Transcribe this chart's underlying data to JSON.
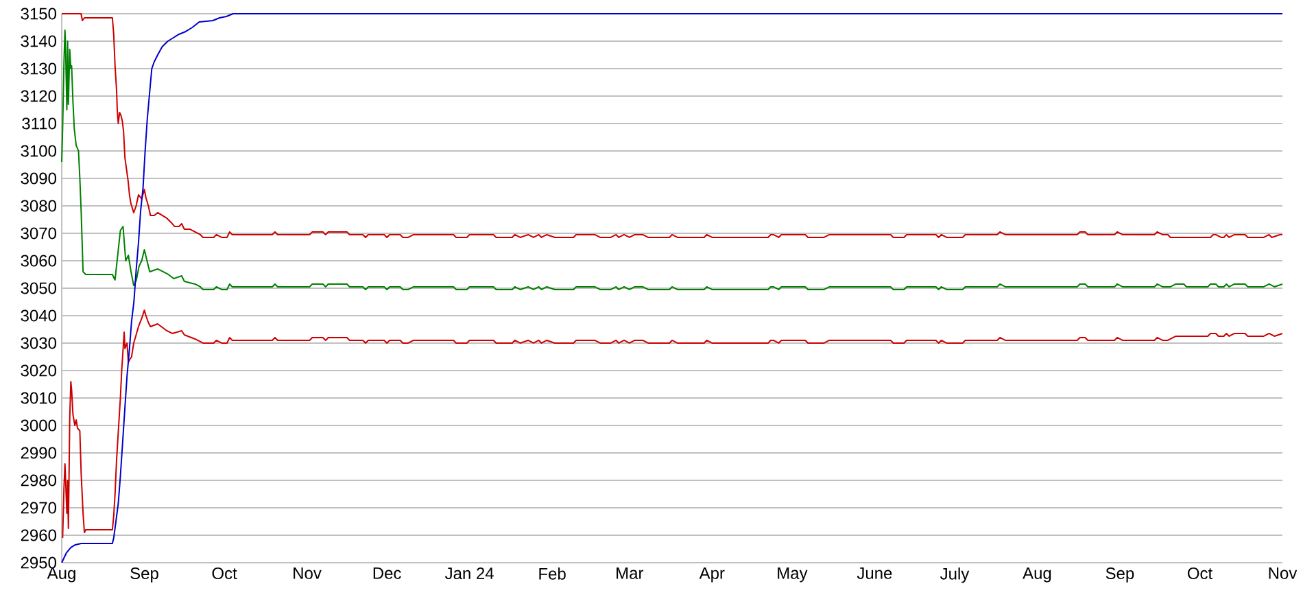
{
  "chart_data": {
    "type": "line",
    "xlim": [
      "2023-08-01",
      "2024-11-01"
    ],
    "ylim": [
      2950,
      3150
    ],
    "xticks": [
      {
        "value": "2023-08-01",
        "label": "Aug"
      },
      {
        "value": "2023-09-01",
        "label": "Sep"
      },
      {
        "value": "2023-10-01",
        "label": "Oct"
      },
      {
        "value": "2023-11-01",
        "label": "Nov"
      },
      {
        "value": "2023-12-01",
        "label": "Dec"
      },
      {
        "value": "2024-01-01",
        "label": "Jan 24"
      },
      {
        "value": "2024-02-01",
        "label": "Feb"
      },
      {
        "value": "2024-03-01",
        "label": "Mar"
      },
      {
        "value": "2024-04-01",
        "label": "Apr"
      },
      {
        "value": "2024-05-01",
        "label": "May"
      },
      {
        "value": "2024-06-01",
        "label": "June"
      },
      {
        "value": "2024-07-01",
        "label": "July"
      },
      {
        "value": "2024-08-01",
        "label": "Aug"
      },
      {
        "value": "2024-09-01",
        "label": "Sep"
      },
      {
        "value": "2024-10-01",
        "label": "Oct"
      },
      {
        "value": "2024-11-01",
        "label": "Nov"
      }
    ],
    "yticks": [
      2950,
      2960,
      2970,
      2980,
      2990,
      3000,
      3010,
      3020,
      3030,
      3040,
      3050,
      3060,
      3070,
      3080,
      3090,
      3100,
      3110,
      3120,
      3130,
      3140,
      3150
    ],
    "grid": "y",
    "series": [
      {
        "color": "#cc0000",
        "x": [
          "2023-08-01",
          "2023-08-08T06:00",
          "2023-08-08T18:00",
          "2023-08-09T12:00",
          "2023-08-20",
          "2023-08-20T12:00",
          "2023-08-21",
          "2023-08-21T14:00",
          "2023-08-21T20:00",
          "2023-08-22T05:00",
          "2023-08-22T17:00",
          "2023-08-23T05:00",
          "2023-08-23T17:00",
          "2023-08-24T05:00",
          "2023-08-24T17:00",
          "2023-08-25T05:00",
          "2023-08-25T22:00",
          "2023-08-26T10:00",
          "2023-08-26T22:00",
          "2023-08-28",
          "2023-08-28T22:00",
          "2023-08-29T19:00",
          "2023-08-31",
          "2023-09-01",
          "2023-09-01T14:00",
          "2023-09-02T12:00",
          "2023-09-03T07:00",
          "2023-09-04T17:00",
          "2023-09-06",
          "2023-09-07T17:00",
          "2023-09-09T10:00",
          "2023-09-11",
          "2023-09-12T07:00",
          "2023-09-14",
          "2023-09-15",
          "2023-09-16",
          "2023-09-18",
          "2023-09-20",
          "2023-09-22",
          "2023-09-23",
          "2023-09-27",
          "2023-09-28",
          "2023-09-30",
          "2023-10-02",
          "2023-10-03",
          "2023-10-04",
          "2023-10-19",
          "2023-10-20",
          "2023-10-21",
          "2023-11-02",
          "2023-11-03",
          "2023-11-07",
          "2023-11-08",
          "2023-11-09",
          "2023-11-16",
          "2023-11-17",
          "2023-11-22",
          "2023-11-23",
          "2023-11-24",
          "2023-11-30",
          "2023-12-01",
          "2023-12-02",
          "2023-12-06",
          "2023-12-07",
          "2023-12-09",
          "2023-12-11",
          "2023-12-26",
          "2023-12-27",
          "2023-12-31",
          "2024-01-01",
          "2024-01-10",
          "2024-01-11",
          "2024-01-17",
          "2024-01-18",
          "2024-01-20",
          "2024-01-23",
          "2024-01-25",
          "2024-01-27",
          "2024-01-28",
          "2024-01-30",
          "2024-02-02",
          "2024-02-09",
          "2024-02-10",
          "2024-02-17",
          "2024-02-19",
          "2024-02-23",
          "2024-02-25",
          "2024-02-26",
          "2024-02-28",
          "2024-03-01",
          "2024-03-03",
          "2024-03-06",
          "2024-03-08",
          "2024-03-16",
          "2024-03-17",
          "2024-03-19",
          "2024-03-29",
          "2024-03-30",
          "2024-04-01",
          "2024-04-22",
          "2024-04-23",
          "2024-04-24",
          "2024-04-26",
          "2024-04-27",
          "2024-05-06",
          "2024-05-07",
          "2024-05-13",
          "2024-05-15",
          "2024-06-07",
          "2024-06-08",
          "2024-06-12",
          "2024-06-13",
          "2024-06-24",
          "2024-06-25",
          "2024-06-26",
          "2024-06-28",
          "2024-07-04",
          "2024-07-05",
          "2024-07-17",
          "2024-07-18",
          "2024-07-20",
          "2024-08-16",
          "2024-08-17",
          "2024-08-19",
          "2024-08-20",
          "2024-08-30",
          "2024-08-31",
          "2024-09-02",
          "2024-09-14",
          "2024-09-15",
          "2024-09-17",
          "2024-09-19",
          "2024-09-20",
          "2024-10-05",
          "2024-10-06",
          "2024-10-07",
          "2024-10-09",
          "2024-10-10",
          "2024-10-11",
          "2024-10-12",
          "2024-10-14",
          "2024-10-18",
          "2024-10-19",
          "2024-10-25",
          "2024-10-27",
          "2024-10-28",
          "2024-10-31",
          "2024-11-01"
        ],
        "values": [
          3150,
          3150,
          3147.5,
          3148.5,
          3148.5,
          3142.5,
          3131,
          3122,
          3115,
          3110,
          3114,
          3113,
          3111,
          3107,
          3097.5,
          3094,
          3089,
          3084,
          3081,
          3077.5,
          3080,
          3084,
          3082.5,
          3086,
          3083,
          3080,
          3076.5,
          3076.5,
          3077.5,
          3076.5,
          3075.5,
          3074,
          3072.5,
          3072.5,
          3073.5,
          3071.5,
          3071.5,
          3070.5,
          3069.5,
          3068.5,
          3068.5,
          3069.5,
          3068.5,
          3068.5,
          3070.5,
          3069.5,
          3069.5,
          3070.5,
          3069.5,
          3069.5,
          3070.5,
          3070.5,
          3069.5,
          3070.5,
          3070.5,
          3069.5,
          3069.5,
          3068.5,
          3069.5,
          3069.5,
          3068.5,
          3069.5,
          3069.5,
          3068.5,
          3068.5,
          3069.5,
          3069.5,
          3068.5,
          3068.5,
          3069.5,
          3069.5,
          3068.5,
          3068.5,
          3069.5,
          3068.5,
          3069.5,
          3068.5,
          3069.5,
          3068.5,
          3069.5,
          3068.5,
          3068.5,
          3069.5,
          3069.5,
          3068.5,
          3068.5,
          3069.5,
          3068.5,
          3069.5,
          3068.5,
          3069.5,
          3069.5,
          3068.5,
          3068.5,
          3069.5,
          3068.5,
          3068.5,
          3069.5,
          3068.5,
          3068.5,
          3069.5,
          3069.5,
          3068.5,
          3069.5,
          3069.5,
          3068.5,
          3068.5,
          3069.5,
          3069.5,
          3068.5,
          3068.5,
          3069.5,
          3069.5,
          3068.5,
          3069.5,
          3068.5,
          3068.5,
          3069.5,
          3069.5,
          3070.5,
          3069.5,
          3069.5,
          3070.5,
          3070.5,
          3069.5,
          3069.5,
          3070.5,
          3069.5,
          3069.5,
          3070.5,
          3069.5,
          3069.5,
          3068.5,
          3068.5,
          3069.5,
          3069.5,
          3068.5,
          3068.5,
          3069.5,
          3068.5,
          3069.5,
          3069.5,
          3068.5,
          3068.5,
          3069.5,
          3068.5,
          3069.5,
          3069.5
        ]
      },
      {
        "color": "#008000",
        "x": [
          "2023-08-01",
          "2023-08-01T08:00",
          "2023-08-01T20:00",
          "2023-08-02T05:00",
          "2023-08-02T12:00",
          "2023-08-02T22:00",
          "2023-08-03T05:00",
          "2023-08-03T12:00",
          "2023-08-04T00:00",
          "2023-08-04T10:00",
          "2023-08-04T17:00",
          "2023-08-05T05:00",
          "2023-08-05T17:00",
          "2023-08-06T10:00",
          "2023-08-07T07:00",
          "2023-08-07T19:00",
          "2023-08-08T07:00",
          "2023-08-09",
          "2023-08-10",
          "2023-08-20",
          "2023-08-21",
          "2023-08-22",
          "2023-08-23",
          "2023-08-24",
          "2023-08-25",
          "2023-08-26",
          "2023-08-27",
          "2023-08-28",
          "2023-08-29",
          "2023-08-30",
          "2023-08-31",
          "2023-09-01",
          "2023-09-02",
          "2023-09-03",
          "2023-09-06",
          "2023-09-10",
          "2023-09-12",
          "2023-09-15",
          "2023-09-16",
          "2023-09-20",
          "2023-09-22",
          "2023-09-23",
          "2023-09-27",
          "2023-09-28",
          "2023-09-30",
          "2023-10-02",
          "2023-10-03",
          "2023-10-04",
          "2023-10-19",
          "2023-10-20",
          "2023-10-21",
          "2023-11-02",
          "2023-11-03",
          "2023-11-07",
          "2023-11-08",
          "2023-11-09",
          "2023-11-16",
          "2023-11-17",
          "2023-11-22",
          "2023-11-23",
          "2023-11-24",
          "2023-11-30",
          "2023-12-01",
          "2023-12-02",
          "2023-12-06",
          "2023-12-07",
          "2023-12-09",
          "2023-12-11",
          "2023-12-26",
          "2023-12-27",
          "2023-12-31",
          "2024-01-01",
          "2024-01-10",
          "2024-01-11",
          "2024-01-17",
          "2024-01-18",
          "2024-01-20",
          "2024-01-23",
          "2024-01-25",
          "2024-01-27",
          "2024-01-28",
          "2024-01-30",
          "2024-02-02",
          "2024-02-09",
          "2024-02-10",
          "2024-02-17",
          "2024-02-19",
          "2024-02-23",
          "2024-02-25",
          "2024-02-26",
          "2024-02-28",
          "2024-03-01",
          "2024-03-03",
          "2024-03-06",
          "2024-03-08",
          "2024-03-16",
          "2024-03-17",
          "2024-03-19",
          "2024-03-29",
          "2024-03-30",
          "2024-04-01",
          "2024-04-22",
          "2024-04-23",
          "2024-04-24",
          "2024-04-26",
          "2024-04-27",
          "2024-05-06",
          "2024-05-07",
          "2024-05-13",
          "2024-05-15",
          "2024-06-07",
          "2024-06-08",
          "2024-06-12",
          "2024-06-13",
          "2024-06-24",
          "2024-06-25",
          "2024-06-26",
          "2024-06-28",
          "2024-07-04",
          "2024-07-05",
          "2024-07-17",
          "2024-07-18",
          "2024-07-20",
          "2024-08-16",
          "2024-08-17",
          "2024-08-19",
          "2024-08-20",
          "2024-08-30",
          "2024-08-31",
          "2024-09-02",
          "2024-09-14",
          "2024-09-15",
          "2024-09-17",
          "2024-09-19",
          "2024-09-20",
          "2024-09-22",
          "2024-09-25",
          "2024-09-26",
          "2024-10-04",
          "2024-10-05",
          "2024-10-07",
          "2024-10-08",
          "2024-10-10",
          "2024-10-11",
          "2024-10-12",
          "2024-10-14",
          "2024-10-18",
          "2024-10-19",
          "2024-10-25",
          "2024-10-27",
          "2024-10-29",
          "2024-11-01"
        ],
        "values": [
          3096,
          3108,
          3132,
          3144,
          3135,
          3115,
          3140,
          3117,
          3137,
          3130,
          3131,
          3118,
          3108,
          3102,
          3100,
          3090,
          3078,
          3056,
          3055,
          3055,
          3053,
          3062,
          3071,
          3072.5,
          3060,
          3062,
          3056,
          3051,
          3053,
          3058,
          3060,
          3064,
          3060,
          3056,
          3057,
          3055,
          3053.5,
          3054.5,
          3052.5,
          3051.5,
          3050.5,
          3049.5,
          3049.5,
          3050.5,
          3049.5,
          3049.5,
          3051.5,
          3050.5,
          3050.5,
          3051.5,
          3050.5,
          3050.5,
          3051.5,
          3051.5,
          3050.5,
          3051.5,
          3051.5,
          3050.5,
          3050.5,
          3049.5,
          3050.5,
          3050.5,
          3049.5,
          3050.5,
          3050.5,
          3049.5,
          3049.5,
          3050.5,
          3050.5,
          3049.5,
          3049.5,
          3050.5,
          3050.5,
          3049.5,
          3049.5,
          3050.5,
          3049.5,
          3050.5,
          3049.5,
          3050.5,
          3049.5,
          3050.5,
          3049.5,
          3049.5,
          3050.5,
          3050.5,
          3049.5,
          3049.5,
          3050.5,
          3049.5,
          3050.5,
          3049.5,
          3050.5,
          3050.5,
          3049.5,
          3049.5,
          3050.5,
          3049.5,
          3049.5,
          3050.5,
          3049.5,
          3049.5,
          3050.5,
          3050.5,
          3049.5,
          3050.5,
          3050.5,
          3049.5,
          3049.5,
          3050.5,
          3050.5,
          3049.5,
          3049.5,
          3050.5,
          3050.5,
          3049.5,
          3050.5,
          3049.5,
          3049.5,
          3050.5,
          3050.5,
          3051.5,
          3050.5,
          3050.5,
          3051.5,
          3051.5,
          3050.5,
          3050.5,
          3051.5,
          3050.5,
          3050.5,
          3051.5,
          3050.5,
          3050.5,
          3050.5,
          3051.5,
          3051.5,
          3050.5,
          3050.5,
          3051.5,
          3051.5,
          3050.5,
          3050.5,
          3051.5,
          3050.5,
          3051.5,
          3051.5,
          3050.5,
          3050.5,
          3051.5,
          3050.5,
          3051.5
        ]
      },
      {
        "color": "#cc0000",
        "x": [
          "2023-08-01T08:00",
          "2023-08-01T20:00",
          "2023-08-02T05:00",
          "2023-08-02T12:00",
          "2023-08-02T22:00",
          "2023-08-03T05:00",
          "2023-08-03T12:00",
          "2023-08-04T00:00",
          "2023-08-04T10:00",
          "2023-08-04T17:00",
          "2023-08-05T05:00",
          "2023-08-05T22:00",
          "2023-08-06T10:00",
          "2023-08-06T22:00",
          "2023-08-07T19:00",
          "2023-08-08T07:00",
          "2023-08-09",
          "2023-08-09T12:00",
          "2023-08-10",
          "2023-08-20",
          "2023-08-20T12:00",
          "2023-08-21",
          "2023-08-21T14:00",
          "2023-08-22T05:00",
          "2023-08-23",
          "2023-08-23T12:00",
          "2023-08-24",
          "2023-08-24T10:00",
          "2023-08-24T17:00",
          "2023-08-25T12:00",
          "2023-08-26",
          "2023-08-26T12:00",
          "2023-08-27T05:00",
          "2023-08-28",
          "2023-08-28T22:00",
          "2023-08-29T19:00",
          "2023-08-31",
          "2023-09-01",
          "2023-09-01T14:00",
          "2023-09-02T12:00",
          "2023-09-03T07:00",
          "2023-09-06",
          "2023-09-09T10:00",
          "2023-09-11T12:00",
          "2023-09-15",
          "2023-09-16",
          "2023-09-20",
          "2023-09-23",
          "2023-09-27",
          "2023-09-28",
          "2023-09-30",
          "2023-10-02",
          "2023-10-03",
          "2023-10-04",
          "2023-10-19",
          "2023-10-20",
          "2023-10-21",
          "2023-11-02",
          "2023-11-03",
          "2023-11-07",
          "2023-11-08",
          "2023-11-09",
          "2023-11-16",
          "2023-11-17",
          "2023-11-22",
          "2023-11-23",
          "2023-11-24",
          "2023-11-30",
          "2023-12-01",
          "2023-12-02",
          "2023-12-06",
          "2023-12-07",
          "2023-12-09",
          "2023-12-11",
          "2023-12-26",
          "2023-12-27",
          "2023-12-31",
          "2024-01-01",
          "2024-01-10",
          "2024-01-11",
          "2024-01-17",
          "2024-01-18",
          "2024-01-20",
          "2024-01-23",
          "2024-01-25",
          "2024-01-27",
          "2024-01-28",
          "2024-01-30",
          "2024-02-02",
          "2024-02-09",
          "2024-02-10",
          "2024-02-17",
          "2024-02-19",
          "2024-02-23",
          "2024-02-25",
          "2024-02-26",
          "2024-02-28",
          "2024-03-01",
          "2024-03-03",
          "2024-03-06",
          "2024-03-08",
          "2024-03-16",
          "2024-03-17",
          "2024-03-19",
          "2024-03-29",
          "2024-03-30",
          "2024-04-01",
          "2024-04-22",
          "2024-04-23",
          "2024-04-24",
          "2024-04-26",
          "2024-04-27",
          "2024-05-06",
          "2024-05-07",
          "2024-05-13",
          "2024-05-15",
          "2024-06-07",
          "2024-06-08",
          "2024-06-12",
          "2024-06-13",
          "2024-06-24",
          "2024-06-25",
          "2024-06-26",
          "2024-06-28",
          "2024-07-04",
          "2024-07-05",
          "2024-07-17",
          "2024-07-18",
          "2024-07-20",
          "2024-08-16",
          "2024-08-17",
          "2024-08-19",
          "2024-08-20",
          "2024-08-30",
          "2024-08-31",
          "2024-09-02",
          "2024-09-14",
          "2024-09-15",
          "2024-09-17",
          "2024-09-19",
          "2024-09-20",
          "2024-09-22",
          "2024-10-04",
          "2024-10-05",
          "2024-10-07",
          "2024-10-08",
          "2024-10-10",
          "2024-10-11",
          "2024-10-12",
          "2024-10-14",
          "2024-10-18",
          "2024-10-19",
          "2024-10-25",
          "2024-10-27",
          "2024-10-29",
          "2024-11-01"
        ],
        "values": [
          2959,
          2977,
          2986,
          2979,
          2968,
          2980,
          2962.5,
          3002.5,
          3016,
          3013,
          3004,
          3000,
          3002,
          2999,
          2998,
          2982.5,
          2968,
          2961,
          2962,
          2962,
          2967,
          2975,
          2987.5,
          2997.5,
          3010,
          3020,
          3027.5,
          3034,
          3028,
          3030,
          3023,
          3024,
          3025,
          3030,
          3033,
          3036,
          3039,
          3042,
          3040,
          3037.5,
          3036,
          3037,
          3034.5,
          3033.5,
          3034.5,
          3033,
          3031.5,
          3030,
          3030,
          3031,
          3030,
          3030,
          3032,
          3031,
          3031,
          3032,
          3031,
          3031,
          3032,
          3032,
          3031,
          3032,
          3032,
          3031,
          3031,
          3030,
          3031,
          3031,
          3030,
          3031,
          3031,
          3030,
          3030,
          3031,
          3031,
          3030,
          3030,
          3031,
          3031,
          3030,
          3030,
          3031,
          3030,
          3031,
          3030,
          3031,
          3030,
          3031,
          3030,
          3030,
          3031,
          3031,
          3030,
          3030,
          3031,
          3030,
          3031,
          3030,
          3031,
          3031,
          3030,
          3030,
          3031,
          3030,
          3030,
          3031,
          3030,
          3030,
          3031,
          3031,
          3030,
          3031,
          3031,
          3030,
          3030,
          3031,
          3031,
          3030,
          3030,
          3031,
          3031,
          3030,
          3031,
          3030,
          3030,
          3031,
          3031,
          3032,
          3031,
          3031,
          3032,
          3032,
          3031,
          3031,
          3032,
          3031,
          3031,
          3032,
          3031,
          3031,
          3031.5,
          3032.5,
          3032.5,
          3033.5,
          3033.5,
          3032.5,
          3032.5,
          3033.5,
          3032.5,
          3033.5,
          3033.5,
          3032.5,
          3032.5,
          3033.5,
          3032.5,
          3033.5
        ]
      },
      {
        "color": "#0000cc",
        "x": [
          "2023-08-01",
          "2023-08-02T17:00",
          "2023-08-04T10:00",
          "2023-08-06T02:00",
          "2023-08-08T07:00",
          "2023-08-20",
          "2023-08-20T12:00",
          "2023-08-21T08:00",
          "2023-08-22T05:00",
          "2023-08-23",
          "2023-08-23T19:00",
          "2023-08-24T17:00",
          "2023-08-25T12:00",
          "2023-08-26T10:00",
          "2023-08-27T05:00",
          "2023-08-28T02:00",
          "2023-08-28T22:00",
          "2023-08-29T19:00",
          "2023-08-30T14:00",
          "2023-08-31T12:00",
          "2023-09-01T07:00",
          "2023-09-02T02:00",
          "2023-09-03",
          "2023-09-03T19:00",
          "2023-09-04T17:00",
          "2023-09-06",
          "2023-09-07T17:00",
          "2023-09-09T19:00",
          "2023-09-12T07:00",
          "2023-09-14",
          "2023-09-16T12:00",
          "2023-09-19",
          "2023-09-21T14:00",
          "2023-09-26T17:00",
          "2023-09-29T05:00",
          "2023-10-01T19:00",
          "2023-10-04T07:00",
          "2024-11-01"
        ],
        "values": [
          2950,
          2953.5,
          2955.5,
          2956.5,
          2957,
          2957,
          2959,
          2965,
          2971.5,
          2981.5,
          2993,
          3006.5,
          3018,
          3028,
          3038,
          3045,
          3056.5,
          3066.5,
          3078,
          3086.5,
          3100,
          3111.5,
          3121.5,
          3130,
          3132.5,
          3135,
          3138,
          3140,
          3141.5,
          3142.5,
          3143.5,
          3145,
          3147,
          3147.5,
          3148.5,
          3149,
          3150,
          3150
        ]
      }
    ]
  }
}
